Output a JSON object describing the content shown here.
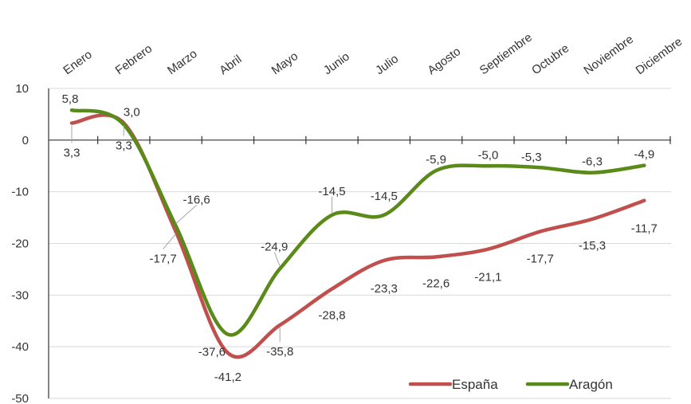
{
  "chart_data": {
    "type": "line",
    "categories": [
      "Enero",
      "Febrero",
      "Marzo",
      "Abril",
      "Mayo",
      "Junio",
      "Julio",
      "Agosto",
      "Septiembre",
      "Octubre",
      "Noviembre",
      "Diciembre"
    ],
    "series": [
      {
        "name": "España",
        "color": "#c0504d",
        "values": [
          3.3,
          3.3,
          -17.7,
          -41.2,
          -35.8,
          -28.8,
          -23.3,
          -22.6,
          -21.1,
          -17.7,
          -15.3,
          -11.7
        ],
        "labels": [
          "3,3",
          "3,3",
          "-17,7",
          "-41,2",
          "-35,8",
          "-28,8",
          "-23,3",
          "-22,6",
          "-21,1",
          "-17,7",
          "-15,3",
          "-11,7"
        ]
      },
      {
        "name": "Aragón",
        "color": "#5a8a1a",
        "values": [
          5.8,
          3.0,
          -16.6,
          -37.6,
          -24.9,
          -14.5,
          -14.5,
          -5.9,
          -5.0,
          -5.3,
          -6.3,
          -4.9
        ],
        "labels": [
          "5,8",
          "3,0",
          "-16,6",
          "-37,6",
          "-24,9",
          "-14,5",
          "-14,5",
          "-5,9",
          "-5,0",
          "-5,3",
          "-6,3",
          "-4,9"
        ]
      }
    ],
    "ylim": [
      -50,
      10
    ],
    "yticks": [
      10,
      0,
      -10,
      -20,
      -30,
      -40,
      -50
    ],
    "grid": true,
    "legend": "bottom-right",
    "title": "",
    "xlabel": "",
    "ylabel": ""
  }
}
